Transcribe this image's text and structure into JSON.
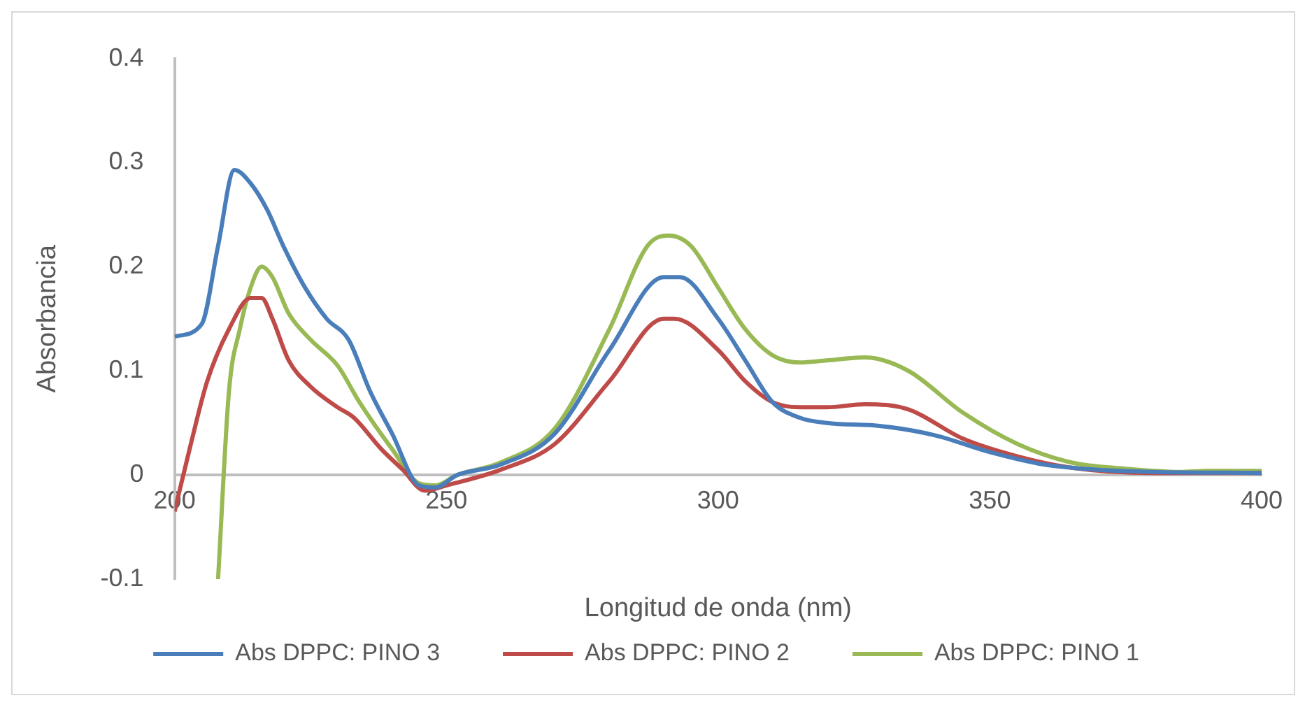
{
  "chart_data": {
    "type": "line",
    "xlabel": "Longitud de onda (nm)",
    "ylabel": "Absorbancia",
    "xlim": [
      200,
      400
    ],
    "xticks": [
      200,
      250,
      300,
      350,
      400
    ],
    "ylim": [
      -0.1,
      0.4
    ],
    "yticks": [
      -0.1,
      0,
      0.1,
      0.2,
      0.3,
      0.4
    ],
    "grid": false,
    "legend": "bottom",
    "marker": "none",
    "line_style": "solid",
    "series": [
      {
        "name": "Abs DPPC: PINO 3",
        "color": "#4a7ebb",
        "x": [
          200,
          205,
          208,
          211,
          214,
          217,
          220,
          224,
          228,
          232,
          236,
          240,
          245,
          248,
          252,
          260,
          270,
          280,
          290,
          293,
          300,
          305,
          310,
          315,
          320,
          330,
          340,
          350,
          360,
          370,
          380,
          400
        ],
        "values": [
          0.133,
          0.145,
          0.22,
          0.293,
          0.28,
          0.255,
          0.22,
          0.18,
          0.15,
          0.13,
          0.08,
          0.04,
          -0.01,
          -0.012,
          0,
          0.01,
          0.04,
          0.12,
          0.19,
          0.19,
          0.15,
          0.11,
          0.07,
          0.055,
          0.05,
          0.047,
          0.038,
          0.022,
          0.01,
          0.005,
          0.003,
          0.002
        ]
      },
      {
        "name": "Abs DPPC: PINO 2",
        "color": "#be4b48",
        "x": [
          200,
          203,
          206,
          210,
          214,
          216,
          218,
          221,
          225,
          230,
          233,
          238,
          242,
          246,
          250,
          260,
          270,
          280,
          290,
          292,
          300,
          305,
          310,
          315,
          320,
          327,
          335,
          345,
          355,
          365,
          380,
          400
        ],
        "values": [
          -0.035,
          0.03,
          0.09,
          0.14,
          0.17,
          0.17,
          0.15,
          0.11,
          0.085,
          0.065,
          0.055,
          0.025,
          0.005,
          -0.015,
          -0.01,
          0.005,
          0.03,
          0.09,
          0.15,
          0.15,
          0.12,
          0.09,
          0.07,
          0.065,
          0.065,
          0.068,
          0.063,
          0.035,
          0.018,
          0.007,
          0.002,
          0.002
        ]
      },
      {
        "name": "Abs DPPC: PINO 1",
        "color": "#98b954",
        "x": [
          208,
          210,
          212,
          214,
          216,
          218,
          221,
          225,
          230,
          234,
          240,
          245,
          248,
          252,
          260,
          270,
          280,
          287,
          291,
          295,
          300,
          305,
          310,
          315,
          320,
          327,
          335,
          345,
          355,
          365,
          375,
          385,
          390,
          400
        ],
        "values": [
          -0.1,
          0.08,
          0.14,
          0.18,
          0.2,
          0.19,
          0.155,
          0.13,
          0.105,
          0.07,
          0.025,
          -0.008,
          -0.01,
          0,
          0.012,
          0.045,
          0.14,
          0.22,
          0.23,
          0.22,
          0.18,
          0.14,
          0.115,
          0.108,
          0.11,
          0.113,
          0.1,
          0.06,
          0.03,
          0.012,
          0.006,
          0.003,
          0.004,
          0.004
        ]
      }
    ]
  }
}
